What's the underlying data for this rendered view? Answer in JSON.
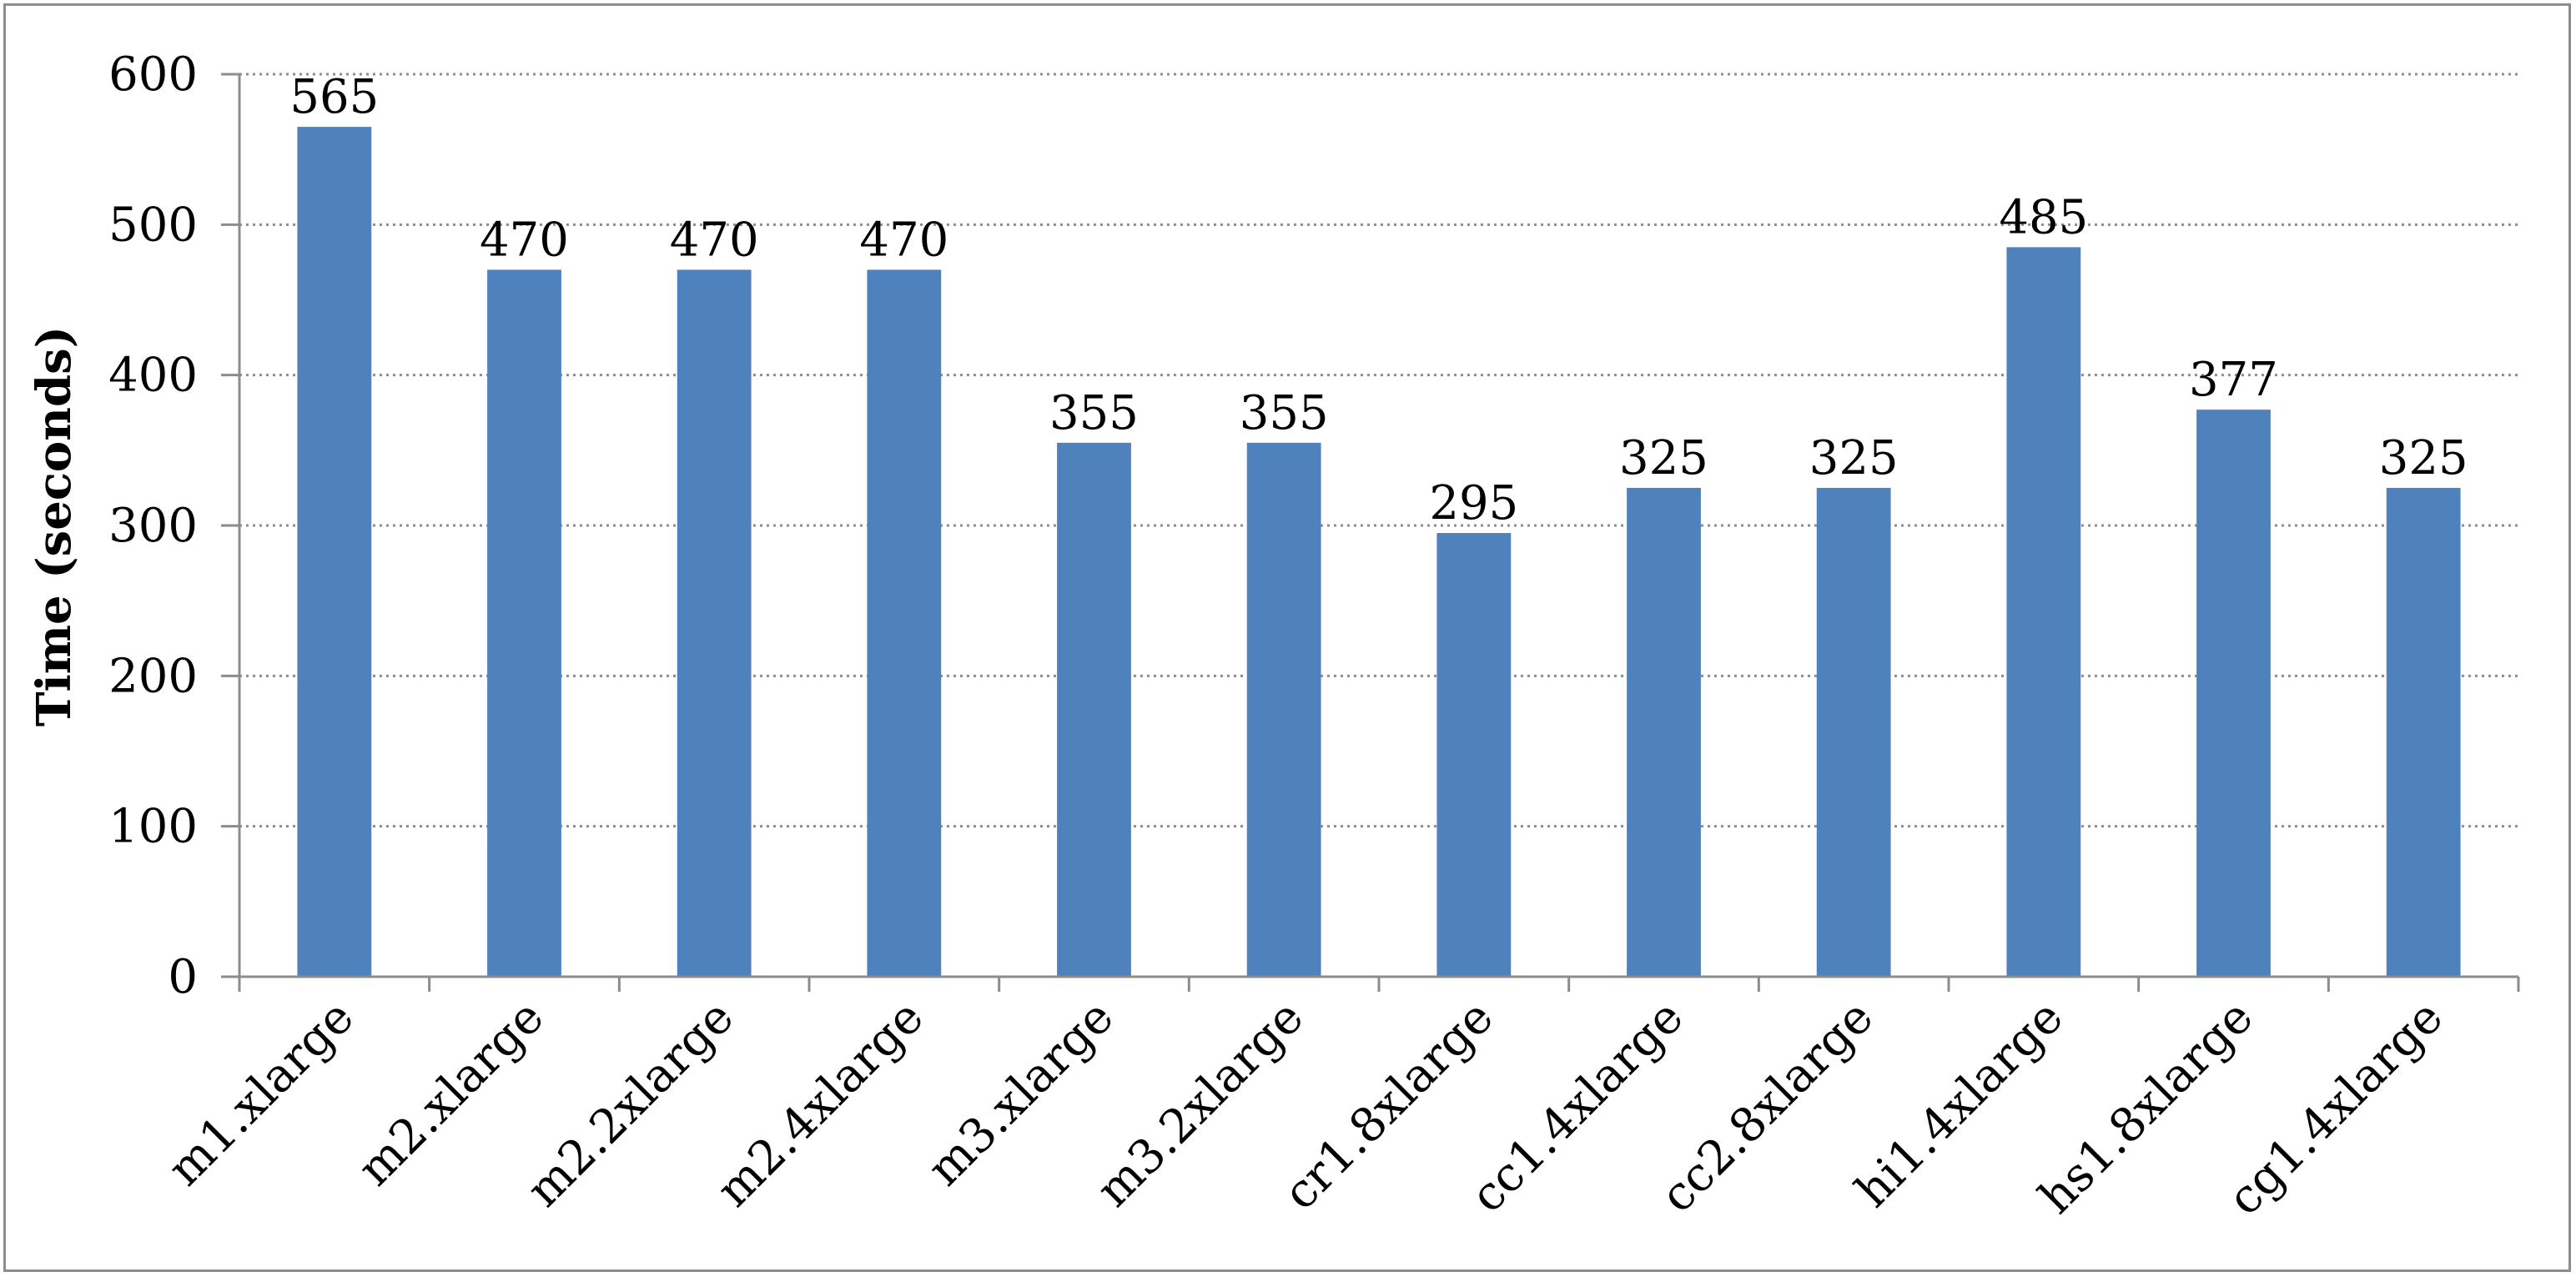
{
  "chart_data": {
    "type": "bar",
    "categories": [
      "m1.xlarge",
      "m2.xlarge",
      "m2.2xlarge",
      "m2.4xlarge",
      "m3.xlarge",
      "m3.2xlarge",
      "cr1.8xlarge",
      "cc1.4xlarge",
      "cc2.8xlarge",
      "hi1.4xlarge",
      "hs1.8xlarge",
      "cg1.4xlarge"
    ],
    "values": [
      565,
      470,
      470,
      470,
      355,
      355,
      295,
      325,
      325,
      485,
      377,
      325
    ],
    "data_labels": [
      "565",
      "470",
      "470",
      "470",
      "355",
      "355",
      "295",
      "325",
      "325",
      "485",
      "377",
      "325"
    ],
    "title": "",
    "xlabel": "",
    "ylabel": "Time (seconds)",
    "ylim": [
      0,
      600
    ],
    "yticks": [
      "0",
      "100",
      "200",
      "300",
      "400",
      "500",
      "600"
    ],
    "ytick_values": [
      0,
      100,
      200,
      300,
      400,
      500,
      600
    ],
    "grid": "horizontal dotted",
    "legend": "none",
    "bar_color": "#4f81bd",
    "grid_color": "#8c8c8c",
    "axis_color": "#8c8c8c"
  }
}
